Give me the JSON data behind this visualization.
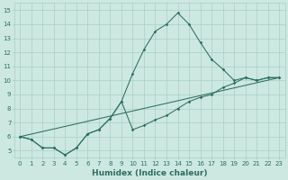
{
  "xlabel": "Humidex (Indice chaleur)",
  "bg_color": "#cce8e0",
  "grid_color": "#aacfc8",
  "line_color": "#2e6e62",
  "xlim": [
    -0.5,
    23.5
  ],
  "ylim": [
    4.5,
    15.5
  ],
  "xticks": [
    0,
    1,
    2,
    3,
    4,
    5,
    6,
    7,
    8,
    9,
    10,
    11,
    12,
    13,
    14,
    15,
    16,
    17,
    18,
    19,
    20,
    21,
    22,
    23
  ],
  "yticks": [
    5,
    6,
    7,
    8,
    9,
    10,
    11,
    12,
    13,
    14,
    15
  ],
  "curve1_x": [
    0,
    1,
    2,
    3,
    4,
    5,
    6,
    7,
    8,
    9,
    10,
    11,
    12,
    13,
    14,
    15,
    16,
    17,
    18,
    19,
    20,
    21,
    22,
    23
  ],
  "curve1_y": [
    6.0,
    5.8,
    5.2,
    5.2,
    4.7,
    5.2,
    6.2,
    6.5,
    7.3,
    8.5,
    10.5,
    12.2,
    13.5,
    14.0,
    14.8,
    14.0,
    12.7,
    11.5,
    10.8,
    10.0,
    10.2,
    10.0,
    10.2,
    10.2
  ],
  "curve2_x": [
    0,
    1,
    2,
    3,
    4,
    5,
    6,
    7,
    8,
    9,
    10,
    11,
    12,
    13,
    14,
    15,
    16,
    17,
    18,
    19,
    20,
    21,
    22,
    23
  ],
  "curve2_y": [
    6.0,
    5.8,
    5.2,
    5.2,
    4.7,
    5.2,
    6.2,
    6.5,
    7.3,
    8.5,
    6.5,
    6.8,
    7.2,
    7.5,
    8.0,
    8.5,
    8.8,
    9.0,
    9.5,
    9.8,
    10.2,
    10.0,
    10.2,
    10.2
  ],
  "curve3_x": [
    0,
    23
  ],
  "curve3_y": [
    6.0,
    10.2
  ],
  "marker_size": 1.8,
  "linewidth": 0.75,
  "tick_fontsize": 5.0,
  "label_fontsize": 6.5
}
